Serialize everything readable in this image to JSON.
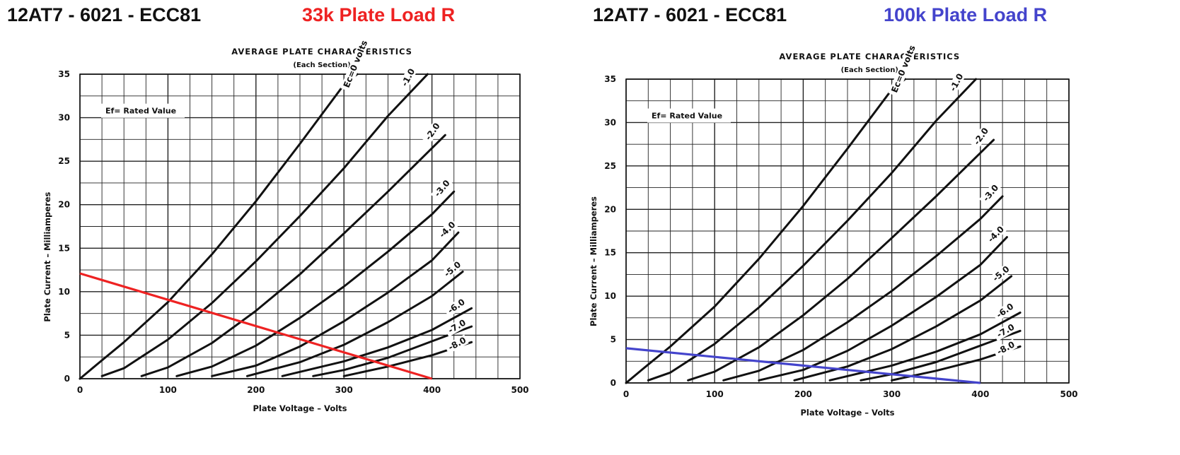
{
  "chart_data": [
    {
      "type": "line",
      "header_left": "12AT7 - 6021 - ECC81",
      "header_right": "33k Plate Load R",
      "title": "AVERAGE PLATE CHARACTERISTICS",
      "subtitle": "(Each Section)",
      "note": "Ef= Rated Value",
      "xlabel": "Plate Voltage – Volts",
      "ylabel": "Plate Current – Milliamperes",
      "xlim": [
        0,
        500
      ],
      "ylim": [
        0,
        35
      ],
      "xticks": [
        "0",
        "100",
        "200",
        "300",
        "400",
        "500"
      ],
      "yticks": [
        "0",
        "5",
        "10",
        "15",
        "20",
        "25",
        "30",
        "35"
      ],
      "grid": true,
      "series": [
        {
          "name": "Ec=0 volts",
          "x": [
            0,
            20,
            50,
            100,
            150,
            200,
            250,
            300,
            315
          ],
          "y": [
            0,
            1.7,
            4.2,
            8.8,
            14.3,
            20.4,
            27.0,
            33.8,
            35.0
          ]
        },
        {
          "name": "-1.0",
          "x": [
            25,
            50,
            100,
            150,
            200,
            250,
            300,
            350,
            395
          ],
          "y": [
            0.3,
            1.2,
            4.5,
            8.7,
            13.5,
            18.7,
            24.2,
            30.2,
            35.0
          ]
        },
        {
          "name": "-2.0",
          "x": [
            70,
            100,
            150,
            200,
            250,
            300,
            350,
            400,
            415
          ],
          "y": [
            0.3,
            1.3,
            4.1,
            7.8,
            12.0,
            16.7,
            21.5,
            26.5,
            28.0
          ]
        },
        {
          "name": "-3.0",
          "x": [
            110,
            150,
            200,
            250,
            300,
            350,
            400,
            425
          ],
          "y": [
            0.3,
            1.4,
            3.8,
            7.0,
            10.6,
            14.6,
            18.9,
            21.5
          ]
        },
        {
          "name": "-4.0",
          "x": [
            150,
            200,
            250,
            300,
            350,
            400,
            430
          ],
          "y": [
            0.3,
            1.5,
            3.7,
            6.6,
            9.9,
            13.6,
            16.8
          ]
        },
        {
          "name": "-5.0",
          "x": [
            190,
            250,
            300,
            350,
            400,
            435
          ],
          "y": [
            0.3,
            1.9,
            3.9,
            6.5,
            9.5,
            12.3
          ]
        },
        {
          "name": "-6.0",
          "x": [
            230,
            300,
            350,
            400,
            445
          ],
          "y": [
            0.3,
            2.0,
            3.6,
            5.6,
            8.1
          ]
        },
        {
          "name": "-7.0",
          "x": [
            265,
            300,
            350,
            400,
            445
          ],
          "y": [
            0.3,
            1.0,
            2.4,
            4.3,
            6.0
          ]
        },
        {
          "name": "-8.0",
          "x": [
            300,
            350,
            400,
            445
          ],
          "y": [
            0.3,
            1.4,
            2.7,
            4.2
          ]
        }
      ],
      "load_line": {
        "name": "33k Plate Load R",
        "x": [
          0,
          400
        ],
        "y": [
          12.1,
          0
        ],
        "color": "#ee2222"
      }
    },
    {
      "type": "line",
      "header_left": "12AT7 - 6021 - ECC81",
      "header_right": "100k Plate Load R",
      "title": "AVERAGE PLATE CHARACTERISTICS",
      "subtitle": "(Each Section)",
      "note": "Ef= Rated Value",
      "xlabel": "Plate Voltage – Volts",
      "ylabel": "Plate Current – Milliamperes",
      "xlim": [
        0,
        500
      ],
      "ylim": [
        0,
        35
      ],
      "xticks": [
        "0",
        "100",
        "200",
        "300",
        "400",
        "500"
      ],
      "yticks": [
        "0",
        "5",
        "10",
        "15",
        "20",
        "25",
        "30",
        "35"
      ],
      "grid": true,
      "series": [
        {
          "name": "Ec=0 volts",
          "x": [
            0,
            20,
            50,
            100,
            150,
            200,
            250,
            300,
            315
          ],
          "y": [
            0,
            1.7,
            4.2,
            8.8,
            14.3,
            20.4,
            27.0,
            33.8,
            35.0
          ]
        },
        {
          "name": "-1.0",
          "x": [
            25,
            50,
            100,
            150,
            200,
            250,
            300,
            350,
            395
          ],
          "y": [
            0.3,
            1.2,
            4.5,
            8.7,
            13.5,
            18.7,
            24.2,
            30.2,
            35.0
          ]
        },
        {
          "name": "-2.0",
          "x": [
            70,
            100,
            150,
            200,
            250,
            300,
            350,
            400,
            415
          ],
          "y": [
            0.3,
            1.3,
            4.1,
            7.8,
            12.0,
            16.7,
            21.5,
            26.5,
            28.0
          ]
        },
        {
          "name": "-3.0",
          "x": [
            110,
            150,
            200,
            250,
            300,
            350,
            400,
            425
          ],
          "y": [
            0.3,
            1.4,
            3.8,
            7.0,
            10.6,
            14.6,
            18.9,
            21.5
          ]
        },
        {
          "name": "-4.0",
          "x": [
            150,
            200,
            250,
            300,
            350,
            400,
            430
          ],
          "y": [
            0.3,
            1.5,
            3.7,
            6.6,
            9.9,
            13.6,
            16.8
          ]
        },
        {
          "name": "-5.0",
          "x": [
            190,
            250,
            300,
            350,
            400,
            435
          ],
          "y": [
            0.3,
            1.9,
            3.9,
            6.5,
            9.5,
            12.3
          ]
        },
        {
          "name": "-6.0",
          "x": [
            230,
            300,
            350,
            400,
            445
          ],
          "y": [
            0.3,
            2.0,
            3.6,
            5.6,
            8.1
          ]
        },
        {
          "name": "-7.0",
          "x": [
            265,
            300,
            350,
            400,
            445
          ],
          "y": [
            0.3,
            1.0,
            2.4,
            4.3,
            6.0
          ]
        },
        {
          "name": "-8.0",
          "x": [
            300,
            350,
            400,
            445
          ],
          "y": [
            0.3,
            1.4,
            2.7,
            4.2
          ]
        }
      ],
      "load_line": {
        "name": "100k Plate Load R",
        "x": [
          0,
          400
        ],
        "y": [
          4.0,
          0
        ],
        "color": "#4444cc"
      }
    }
  ]
}
